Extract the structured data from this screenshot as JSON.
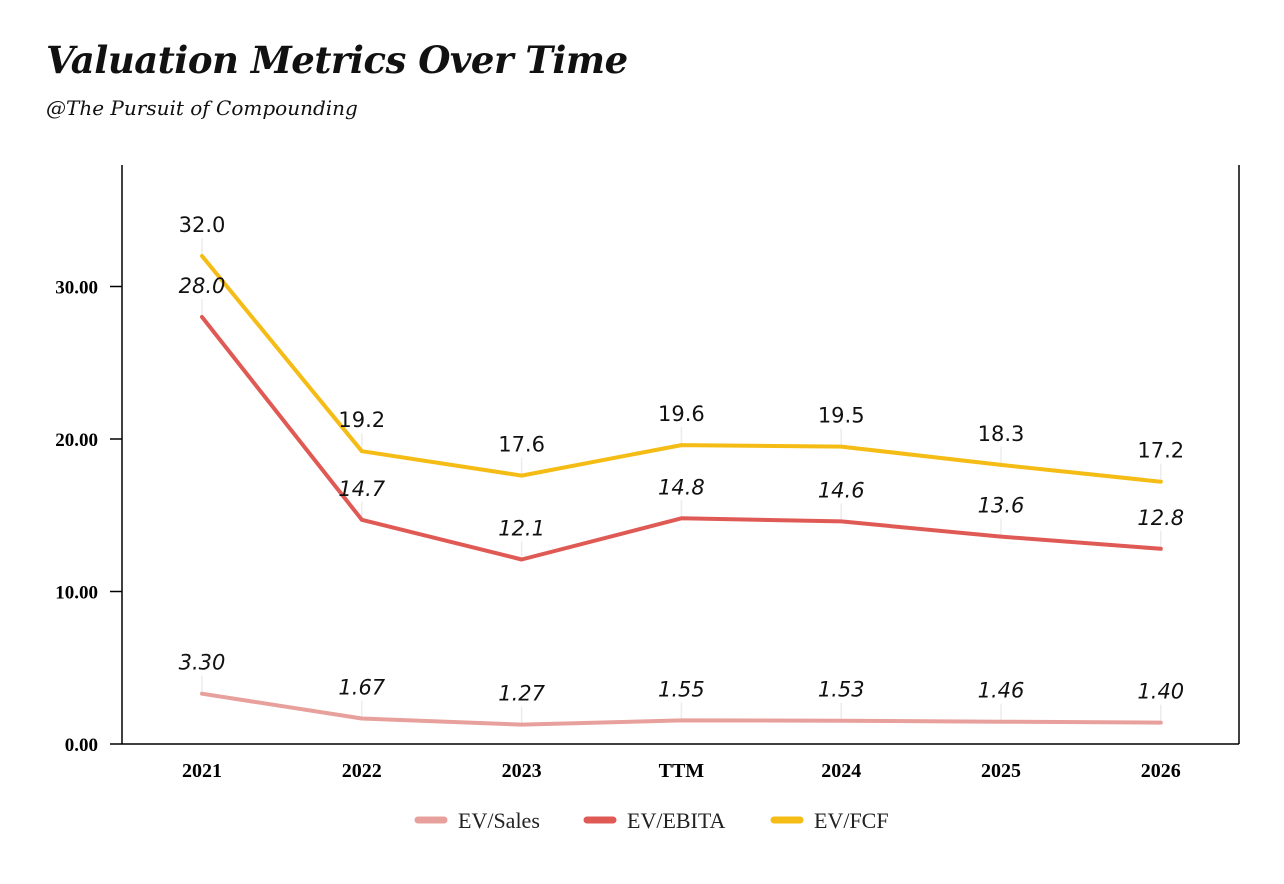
{
  "header": {
    "title": "Valuation Metrics Over Time",
    "subtitle": "@The Pursuit of Compounding"
  },
  "chart_data": {
    "type": "line",
    "title": "Valuation Metrics Over Time",
    "subtitle": "@The Pursuit of Compounding",
    "categories": [
      "2021",
      "2022",
      "2023",
      "TTM",
      "2024",
      "2025",
      "2026"
    ],
    "y_ticks": [
      0,
      10,
      20,
      30
    ],
    "y_tick_labels": [
      "0.00",
      "10.00",
      "20.00",
      "30.00"
    ],
    "ylim": [
      0,
      38
    ],
    "grid": false,
    "legend_position": "bottom",
    "series": [
      {
        "name": "EV/Sales",
        "color": "#e8a09c",
        "values": [
          3.3,
          1.67,
          1.27,
          1.55,
          1.53,
          1.46,
          1.4
        ],
        "labels": [
          "3.30",
          "1.67",
          "1.27",
          "1.55",
          "1.53",
          "1.46",
          "1.40"
        ],
        "label_style": "italic"
      },
      {
        "name": "EV/EBITA",
        "color": "#e05a55",
        "values": [
          28.0,
          14.7,
          12.1,
          14.8,
          14.6,
          13.6,
          12.8
        ],
        "labels": [
          "28.0",
          "14.7",
          "12.1",
          "14.8",
          "14.6",
          "13.6",
          "12.8"
        ],
        "label_style": "italic"
      },
      {
        "name": "EV/FCF",
        "color": "#f4bc14",
        "values": [
          32.0,
          19.2,
          17.6,
          19.6,
          19.5,
          18.3,
          17.2
        ],
        "labels": [
          "32.0",
          "19.2",
          "17.6",
          "19.6",
          "19.5",
          "18.3",
          "17.2"
        ],
        "label_style": "normal"
      }
    ]
  }
}
